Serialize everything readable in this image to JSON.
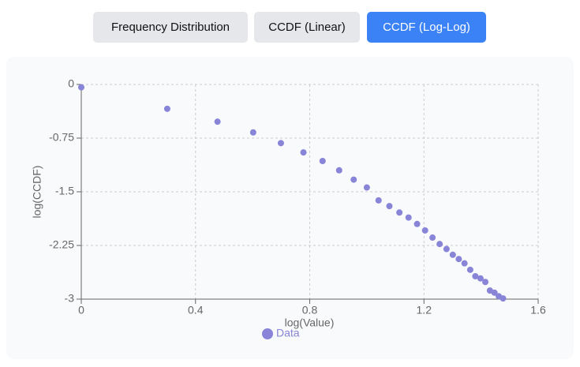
{
  "tabs": [
    {
      "label": "Frequency Distribution",
      "active": false
    },
    {
      "label": "CCDF (Linear)",
      "active": false
    },
    {
      "label": "CCDF (Log-Log)",
      "active": true
    }
  ],
  "chart_data": {
    "type": "scatter",
    "xlabel": "log(Value)",
    "ylabel": "log(CCDF)",
    "x": [
      0,
      0.301,
      0.477,
      0.602,
      0.699,
      0.778,
      0.845,
      0.903,
      0.954,
      1,
      1.041,
      1.079,
      1.114,
      1.146,
      1.176,
      1.204,
      1.23,
      1.255,
      1.279,
      1.301,
      1.322,
      1.342,
      1.362,
      1.38,
      1.398,
      1.415,
      1.431,
      1.447,
      1.462,
      1.477
    ],
    "series": [
      {
        "name": "Data",
        "color": "#8884d8",
        "values": [
          -0.04,
          -0.34,
          -0.52,
          -0.67,
          -0.82,
          -0.95,
          -1.07,
          -1.2,
          -1.33,
          -1.44,
          -1.62,
          -1.7,
          -1.79,
          -1.86,
          -1.95,
          -2.04,
          -2.14,
          -2.23,
          -2.3,
          -2.38,
          -2.44,
          -2.5,
          -2.59,
          -2.68,
          -2.71,
          -2.76,
          -2.88,
          -2.91,
          -2.96,
          -2.99
        ]
      }
    ],
    "xlim": [
      0,
      1.6
    ],
    "xticks": [
      0,
      0.4,
      0.8,
      1.2,
      1.6
    ],
    "ylim": [
      -3,
      0
    ],
    "yticks": [
      0,
      -0.75,
      -1.5,
      -2.25,
      -3
    ],
    "grid": true,
    "legend": "bottom"
  }
}
